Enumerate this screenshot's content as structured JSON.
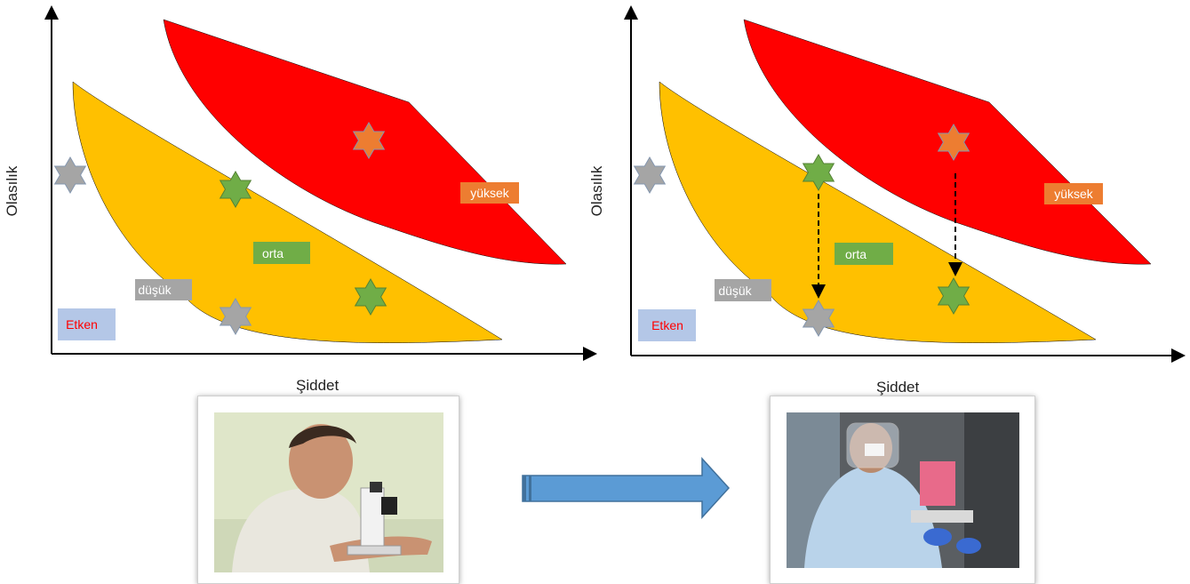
{
  "diagrams": [
    {
      "ylabel": "Olasılık",
      "xlabel": "Şiddet",
      "boxes": {
        "yuksek": "yüksek",
        "orta": "orta",
        "dusuk": "düşük",
        "etken": "Etken"
      }
    },
    {
      "ylabel": "Olasılık",
      "xlabel": "Şiddet",
      "boxes": {
        "yuksek": "yüksek",
        "orta": "orta",
        "dusuk": "düşük",
        "etken": "Etken"
      }
    }
  ],
  "colors": {
    "high_zone": "#ff0000",
    "medium_zone": "#ffc000",
    "high_box": "#ed7d31",
    "medium_box": "#70ad47",
    "low_box": "#a5a5a5",
    "agent_box": "#b4c7e7",
    "agent_text": "#ff0000",
    "arrow": "#5b9bd5",
    "star_gray": "#a5a5a5",
    "star_green": "#70ad47",
    "star_orange": "#ed7d31"
  },
  "photos": [
    {
      "icon": "researcher-microscope-photo"
    },
    {
      "icon": "researcher-protective-gear-photo"
    }
  ]
}
